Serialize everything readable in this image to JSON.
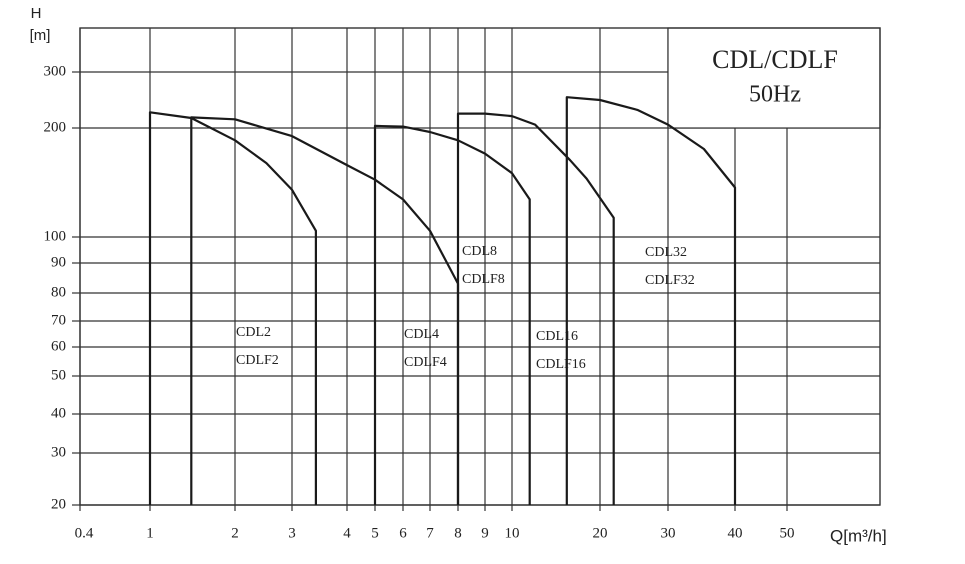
{
  "chart_data": {
    "type": "line",
    "title": "CDL/CDLF",
    "subtitle": "50Hz",
    "y_label": "H",
    "y_unit": "[m]",
    "x_label": "Q[m³/h]",
    "log_x": true,
    "log_y": true,
    "grid": true,
    "color": "#1a1a1a",
    "xlim": [
      0.4,
      70
    ],
    "xticks": [
      0.4,
      1,
      2,
      3,
      4,
      5,
      6,
      7,
      8,
      9,
      10,
      20,
      30,
      40,
      50
    ],
    "ylim": [
      20,
      400
    ],
    "yticks": [
      20,
      30,
      40,
      50,
      60,
      70,
      80,
      90,
      100,
      200,
      300
    ],
    "series": [
      {
        "labels": [
          "CDL2",
          "CDLF2"
        ],
        "x": [
          1,
          1,
          1.4,
          2,
          2.5,
          3,
          3.4,
          3.4
        ],
        "values": [
          20,
          224,
          215,
          185,
          160,
          135,
          104,
          20
        ]
      },
      {
        "labels": [
          "CDL4",
          "CDLF4"
        ],
        "x": [
          1.4,
          1.4,
          2,
          3,
          4,
          5,
          6,
          7,
          8,
          8
        ],
        "values": [
          20,
          216,
          213,
          190,
          158,
          144,
          127,
          104,
          83,
          20
        ]
      },
      {
        "labels": [
          "CDL8",
          "CDLF8"
        ],
        "x": [
          5,
          5,
          6,
          7,
          8,
          9,
          10,
          11.5,
          11.5
        ],
        "values": [
          20,
          203,
          202,
          195,
          185,
          170,
          150,
          127,
          20
        ]
      },
      {
        "labels": [
          "CDL16",
          "CDLF16"
        ],
        "x": [
          8,
          8,
          9,
          10,
          12,
          15.8,
          18,
          21.7,
          21.7
        ],
        "values": [
          20,
          222,
          222,
          218,
          205,
          163,
          145,
          113,
          20
        ]
      },
      {
        "labels": [
          "CDL32",
          "CDLF32"
        ],
        "x": [
          15.4,
          15.4,
          20,
          25,
          30,
          35,
          40,
          40
        ],
        "values": [
          20,
          250,
          245,
          228,
          205,
          175,
          137,
          20
        ]
      }
    ]
  }
}
